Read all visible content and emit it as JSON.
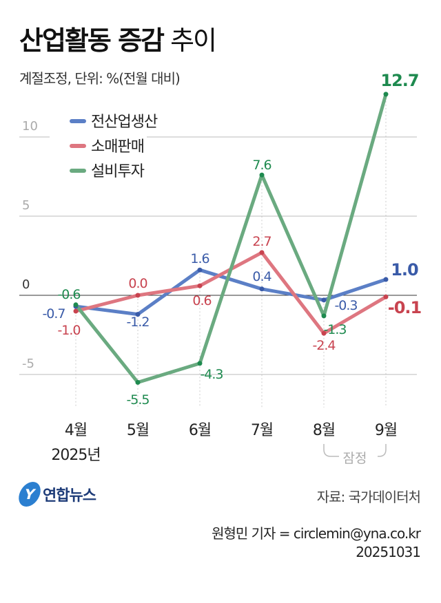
{
  "header": {
    "title_bold": "산업활동 증감",
    "title_light": "추이",
    "subtitle": "계절조정, 단위: %(전월 대비)"
  },
  "chart_data": {
    "type": "line",
    "title": "산업활동 증감 추이",
    "subtitle": "계절조정, 단위: %(전월 대비)",
    "categories": [
      "4월",
      "5월",
      "6월",
      "7월",
      "8월",
      "9월"
    ],
    "year_label": "2025년",
    "provisional_label": "잠정",
    "ylim": [
      -7,
      13
    ],
    "yticks": [
      10,
      5,
      0,
      -5
    ],
    "ytick_labels": [
      "10",
      "5",
      "0",
      "-5"
    ],
    "grid": true,
    "legend_position": "top-left",
    "series": [
      {
        "name": "전산업생산",
        "values": [
          -0.7,
          -1.2,
          1.6,
          0.4,
          -0.3,
          1.0
        ],
        "labels": [
          "-0.7",
          "-1.2",
          "1.6",
          "0.4",
          "-0.3",
          "1.0"
        ],
        "color": "#5b7fc6",
        "label_color": "#3a5ba8"
      },
      {
        "name": "소매판매",
        "values": [
          -1.0,
          0.0,
          0.6,
          2.7,
          -2.4,
          -0.1
        ],
        "labels": [
          "-1.0",
          "0.0",
          "0.6",
          "2.7",
          "-2.4",
          "-0.1"
        ],
        "color": "#de7680",
        "label_color": "#c8434f"
      },
      {
        "name": "설비투자",
        "values": [
          -0.6,
          -5.5,
          -4.3,
          7.6,
          -1.3,
          12.7
        ],
        "labels": [
          "-0.6",
          "-5.5",
          "-4.3",
          "7.6",
          "-1.3",
          "12.7"
        ],
        "color": "#6aaa80",
        "label_color": "#1e8a4f"
      }
    ]
  },
  "footer": {
    "logo_text": "연합뉴스",
    "source": "자료: 국가데이터처",
    "credit": "원형민 기자 = circlemin@yna.co.kr",
    "date": "20251031"
  }
}
